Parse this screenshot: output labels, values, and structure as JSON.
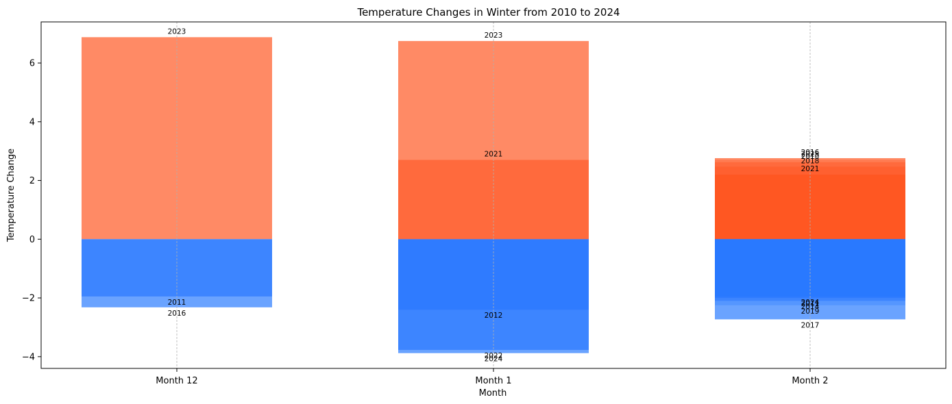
{
  "chart_data": {
    "type": "bar",
    "title": "Temperature Changes in Winter from 2010 to 2024",
    "xlabel": "Month",
    "ylabel": "Temperature Change",
    "categories": [
      "Month 12",
      "Month 1",
      "Month 2"
    ],
    "ylim": [
      -4.4,
      7.4
    ],
    "yticks": [
      -4,
      -2,
      0,
      2,
      4,
      6
    ],
    "grid": "x-dashed",
    "colors": {
      "positive_light": "#ff8a65",
      "positive_mid": "#ff6a3d",
      "positive_dark": "#ff5722",
      "negative_light": "#6aa3ff",
      "negative_mid": "#3d85ff",
      "negative_dark": "#2979ff"
    },
    "bars": [
      {
        "category": "Month 12",
        "segments": [
          {
            "year": "2023",
            "value": 6.88,
            "color": "#ff8a65"
          },
          {
            "year": "2011",
            "value": -1.95,
            "color": "#3d85ff"
          },
          {
            "year": "2016",
            "value": -2.32,
            "color": "#6aa3ff"
          }
        ]
      },
      {
        "category": "Month 1",
        "segments": [
          {
            "year": "2023",
            "value": 6.75,
            "color": "#ff8a65"
          },
          {
            "year": "2021",
            "value": 2.7,
            "color": "#ff6a3d"
          },
          {
            "year": "2012",
            "value": -2.4,
            "color": "#2f7bff"
          },
          {
            "year": "2022",
            "value": -3.77,
            "color": "#3d85ff"
          },
          {
            "year": "2024",
            "value": -3.88,
            "color": "#6aa3ff"
          }
        ]
      },
      {
        "category": "Month 2",
        "segments": [
          {
            "year": "2016",
            "value": 2.76,
            "color": "#ff8a65"
          },
          {
            "year": "2025",
            "value": 2.7,
            "color": "#ff7a50"
          },
          {
            "year": "2010",
            "value": 2.62,
            "color": "#ff6a3d"
          },
          {
            "year": "2018",
            "value": 2.47,
            "color": "#ff6030"
          },
          {
            "year": "2021",
            "value": 2.2,
            "color": "#ff5722"
          },
          {
            "year": "2024",
            "value": -1.95,
            "color": "#2979ff"
          },
          {
            "year": "2011",
            "value": -2.0,
            "color": "#2f7bff"
          },
          {
            "year": "2014",
            "value": -2.1,
            "color": "#3d85ff"
          },
          {
            "year": "2019",
            "value": -2.25,
            "color": "#5596ff"
          },
          {
            "year": "2017",
            "value": -2.73,
            "color": "#6aa3ff"
          }
        ]
      }
    ]
  }
}
